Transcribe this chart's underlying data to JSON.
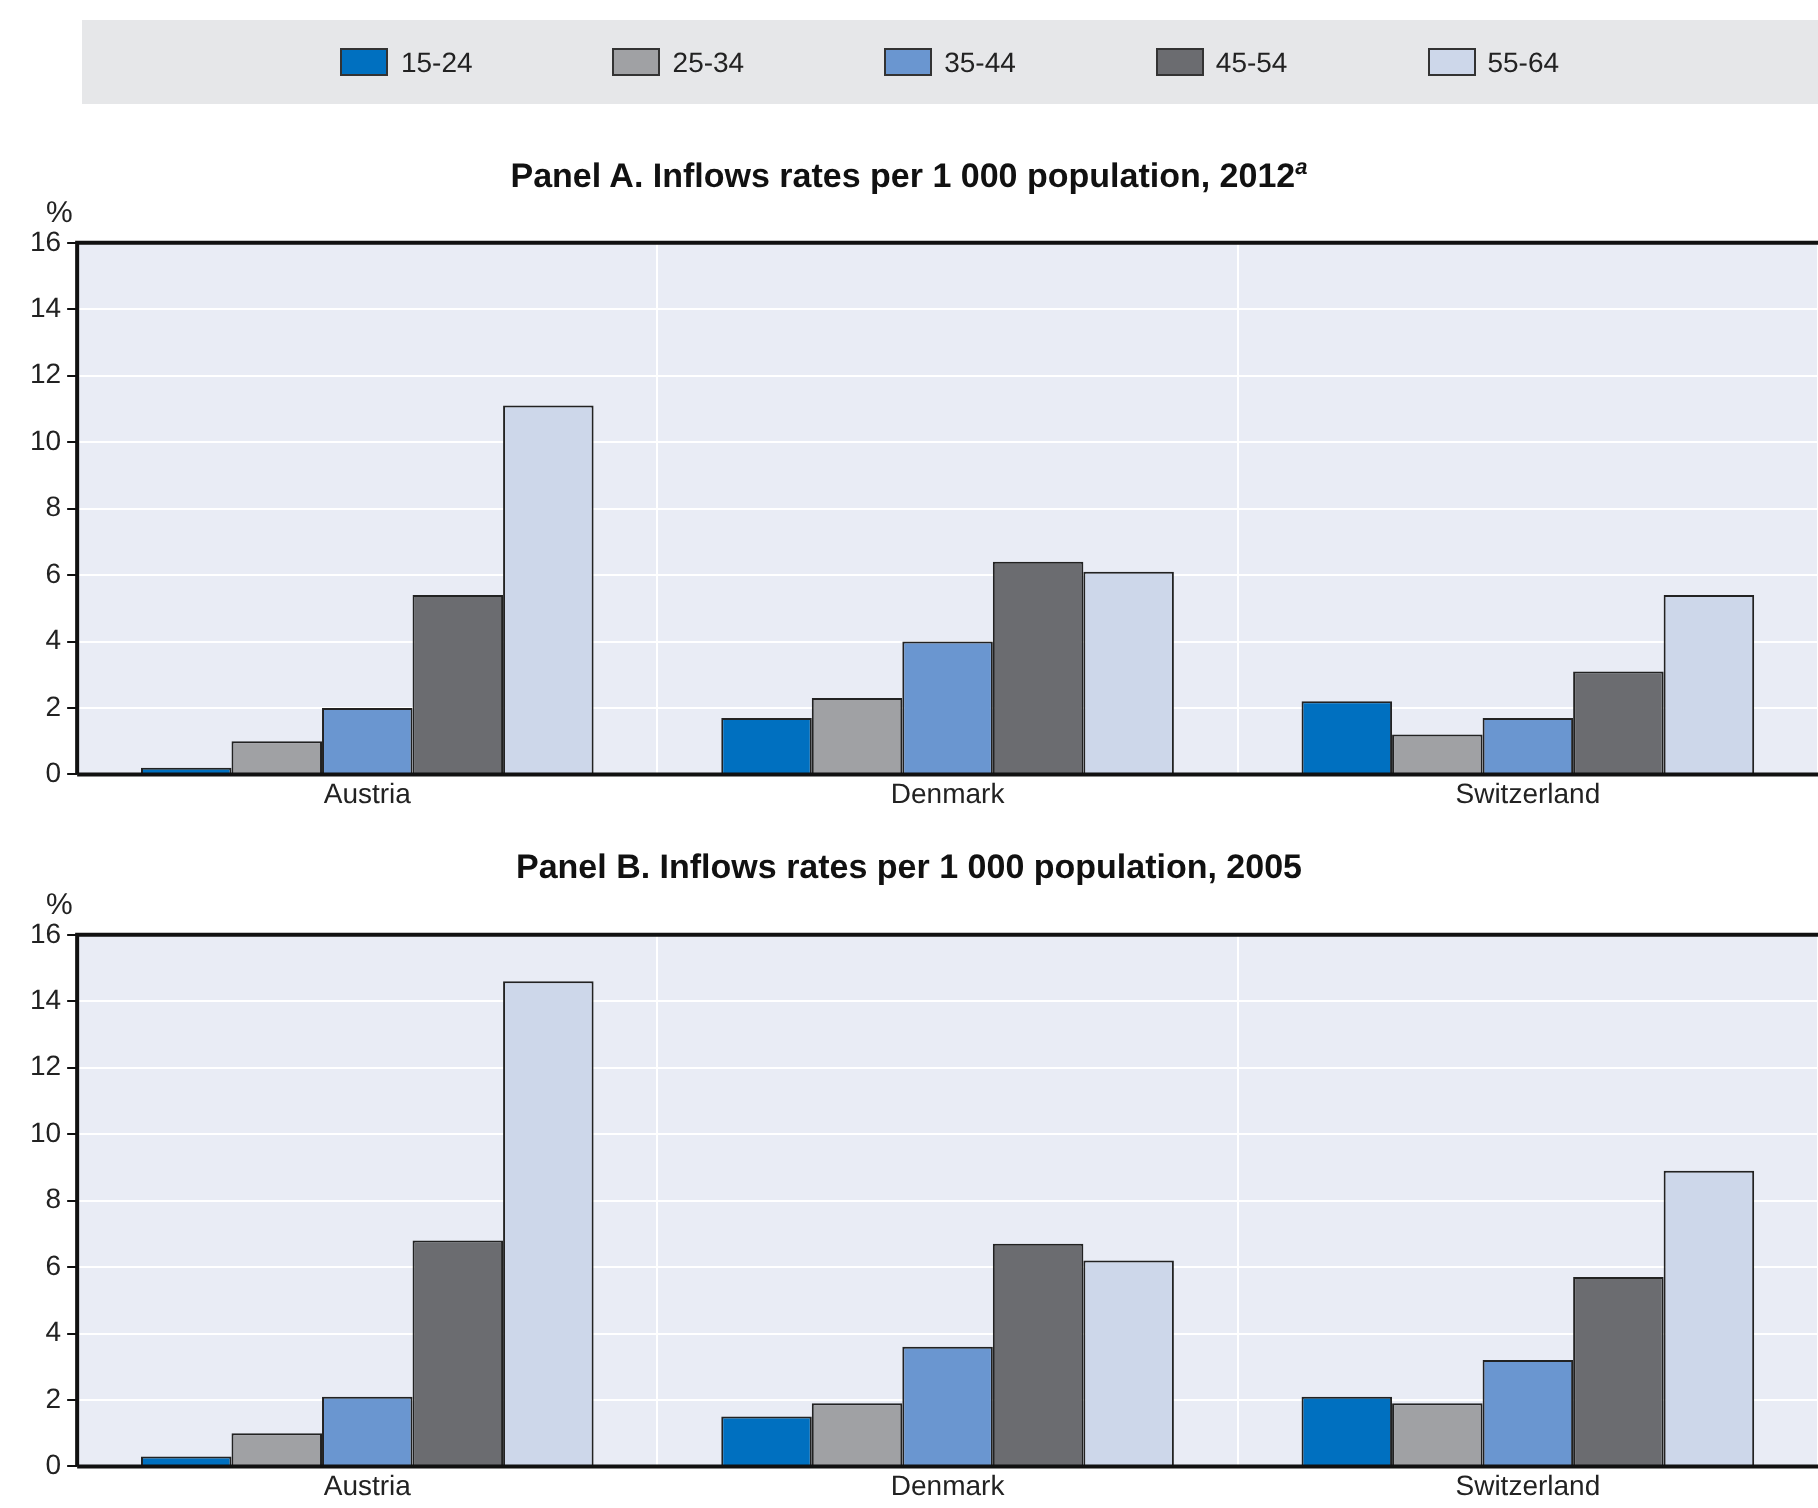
{
  "chart_data": [
    {
      "type": "bar",
      "title": "Panel A. Inflows rates per 1 000 population, 2012$^{a}$",
      "ylabel": "%",
      "categories": [
        "Austria",
        "Denmark",
        "Switzerland"
      ],
      "series": [
        {
          "name": "15-24",
          "color": "#0070c0",
          "values": [
            0.2,
            1.7,
            2.2
          ]
        },
        {
          "name": "25-34",
          "color": "#a0a1a4",
          "values": [
            1.0,
            2.3,
            1.2
          ]
        },
        {
          "name": "35-44",
          "color": "#6a96d0",
          "values": [
            2.0,
            4.0,
            1.7
          ]
        },
        {
          "name": "45-54",
          "color": "#6b6c70",
          "values": [
            5.4,
            6.4,
            3.1
          ]
        },
        {
          "name": "55-64",
          "color": "#cdd7ea",
          "values": [
            11.1,
            6.1,
            5.4
          ]
        }
      ],
      "ylim": [
        0,
        16
      ],
      "yticks": [
        0,
        2,
        4,
        6,
        8,
        10,
        12,
        14,
        16
      ],
      "grid": true,
      "legend": "top"
    },
    {
      "type": "bar",
      "title": "Panel B. Inflows rates per 1 000 population, 2005",
      "ylabel": "%",
      "categories": [
        "Austria",
        "Denmark",
        "Switzerland"
      ],
      "series": [
        {
          "color": "#0070c0",
          "values": [
            0.3,
            1.5,
            2.1
          ]
        },
        {
          "color": "#a0a1a4",
          "values": [
            1.0,
            1.9,
            1.9
          ]
        },
        {
          "color": "#6a96d0",
          "values": [
            2.1,
            3.6,
            3.2
          ]
        },
        {
          "color": "#6b6c70",
          "values": [
            6.8,
            6.7,
            5.7
          ]
        },
        {
          "color": "#cdd7ea",
          "values": [
            14.6,
            6.2,
            8.9
          ]
        }
      ],
      "ylim": [
        0,
        16
      ],
      "yticks": [
        0,
        2,
        4,
        6,
        8,
        10,
        12,
        14,
        16
      ],
      "grid": true
    }
  ]
}
